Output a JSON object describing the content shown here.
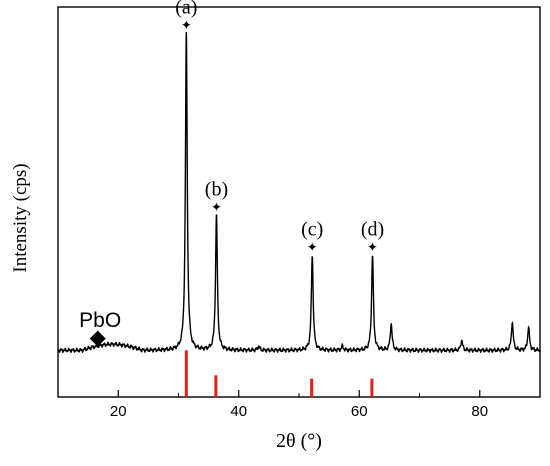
{
  "chart_data": {
    "type": "line",
    "xlabel": "2θ (°)",
    "ylabel": "Intensity (cps)",
    "xlim": [
      10,
      90
    ],
    "ylim": [
      -0.12,
      1.05
    ],
    "xticks": [
      20,
      40,
      60,
      80
    ],
    "xtick_labels": [
      "20",
      "40",
      "60",
      "80"
    ],
    "grid": false,
    "series": [
      {
        "role": "pattern",
        "color": "#000000",
        "baseline": 0.02,
        "peaks": [
          {
            "x": 31.3,
            "height": 0.95,
            "label": "(a)"
          },
          {
            "x": 36.3,
            "height": 0.405,
            "label": "(b)"
          },
          {
            "x": 52.2,
            "height": 0.285,
            "label": "(c)"
          },
          {
            "x": 62.2,
            "height": 0.285,
            "label": "(d)"
          },
          {
            "x": 65.3,
            "height": 0.08
          },
          {
            "x": 77.0,
            "height": 0.03
          },
          {
            "x": 85.4,
            "height": 0.085
          },
          {
            "x": 88.1,
            "height": 0.07
          },
          {
            "x": 43.3,
            "height": 0.012
          },
          {
            "x": 57.2,
            "height": 0.012
          }
        ],
        "hump": {
          "from": 14,
          "to": 24,
          "height": 0.018
        }
      },
      {
        "role": "reference",
        "color": "#e0201b",
        "lines": [
          {
            "x": 31.3,
            "top": 0.02,
            "bottom": -0.12
          },
          {
            "x": 36.2,
            "top": -0.055,
            "bottom": -0.12
          },
          {
            "x": 52.1,
            "top": -0.065,
            "bottom": -0.12
          },
          {
            "x": 62.1,
            "top": -0.065,
            "bottom": -0.12
          }
        ]
      }
    ],
    "marker_star": "✦",
    "annotations": [
      {
        "text": "PbO",
        "x": 17,
        "y": 0.09,
        "marker": "diamond",
        "marker_x": 16.6,
        "marker_y": 0.055
      }
    ]
  }
}
